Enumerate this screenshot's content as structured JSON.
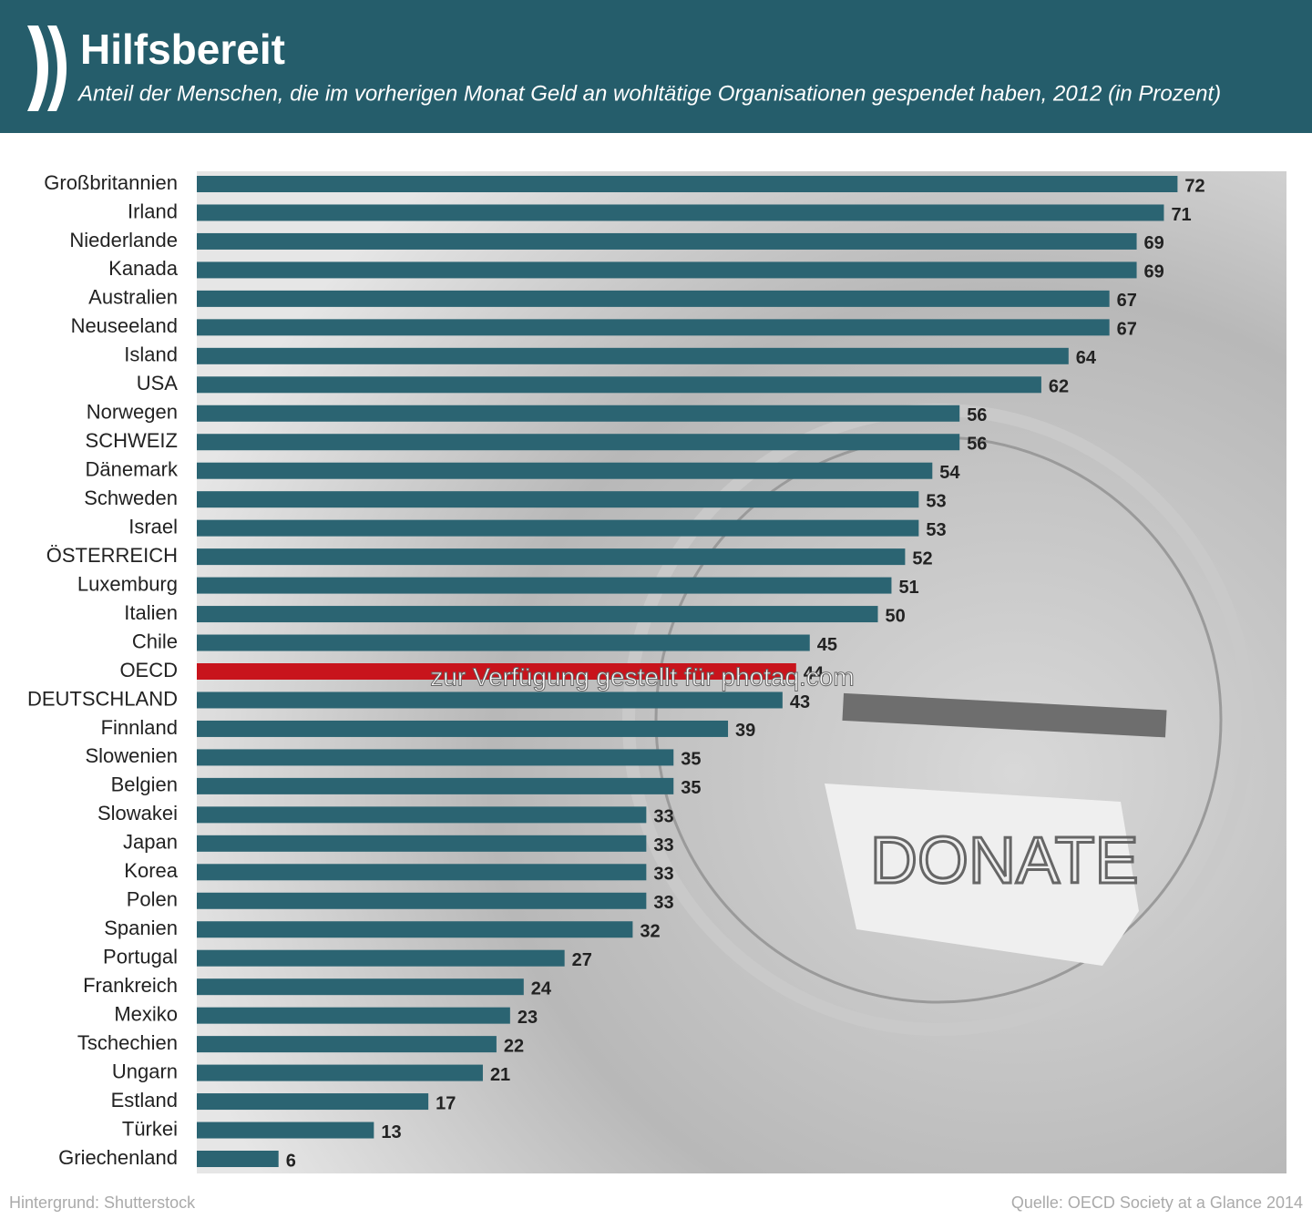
{
  "chart_data": {
    "type": "bar",
    "orientation": "horizontal",
    "title": "Hilfsbereit",
    "subtitle": "Anteil der Menschen, die im vorherigen Monat Geld an wohltätige Organisationen gespendet haben, 2012 (in Prozent)",
    "categories": [
      "Großbritannien",
      "Irland",
      "Niederlande",
      "Kanada",
      "Australien",
      "Neuseeland",
      "Island",
      "USA",
      "Norwegen",
      "SCHWEIZ",
      "Dänemark",
      "Schweden",
      "Israel",
      "ÖSTERREICH",
      "Luxemburg",
      "Italien",
      "Chile",
      "OECD",
      "DEUTSCHLAND",
      "Finnland",
      "Slowenien",
      "Belgien",
      "Slowakei",
      "Japan",
      "Korea",
      "Polen",
      "Spanien",
      "Portugal",
      "Frankreich",
      "Mexiko",
      "Tschechien",
      "Ungarn",
      "Estland",
      "Türkei",
      "Griechenland"
    ],
    "values": [
      72,
      71,
      69,
      69,
      67,
      67,
      64,
      62,
      56,
      56,
      54,
      53,
      53,
      52,
      51,
      50,
      45,
      44,
      43,
      39,
      35,
      35,
      33,
      33,
      33,
      33,
      32,
      27,
      24,
      23,
      22,
      21,
      17,
      13,
      6
    ],
    "colors": [
      "#2b6472",
      "#2b6472",
      "#2b6472",
      "#2b6472",
      "#2b6472",
      "#2b6472",
      "#2b6472",
      "#2b6472",
      "#2b6472",
      "#2b6472",
      "#2b6472",
      "#2b6472",
      "#2b6472",
      "#2b6472",
      "#2b6472",
      "#2b6472",
      "#2b6472",
      "#c8141c",
      "#2b6472",
      "#2b6472",
      "#2b6472",
      "#2b6472",
      "#2b6472",
      "#2b6472",
      "#2b6472",
      "#2b6472",
      "#2b6472",
      "#2b6472",
      "#2b6472",
      "#2b6472",
      "#2b6472",
      "#2b6472",
      "#2b6472",
      "#2b6472",
      "#2b6472"
    ],
    "xlim": [
      0,
      80
    ],
    "annotation": "zur Verfügung gestellt für photaq.com",
    "footer_left": "Hintergrund: Shutterstock",
    "footer_right": "Quelle: OECD Society at a Glance 2014"
  }
}
